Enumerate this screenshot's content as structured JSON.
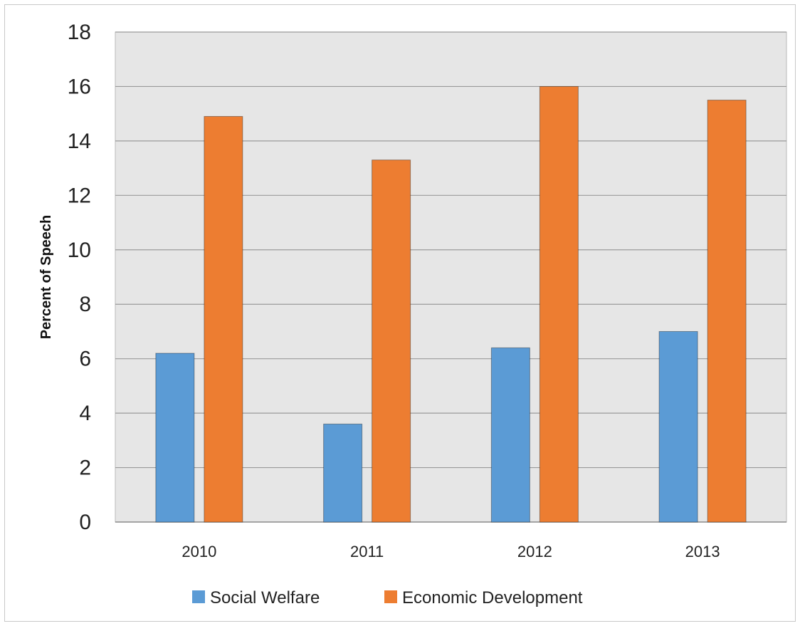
{
  "chart_data": {
    "type": "bar",
    "title": "",
    "xlabel": "",
    "ylabel": "Percent of Speech",
    "ylim": [
      0,
      18
    ],
    "yticks": [
      0,
      2,
      4,
      6,
      8,
      10,
      12,
      14,
      16,
      18
    ],
    "categories": [
      "2010",
      "2011",
      "2012",
      "2013"
    ],
    "series": [
      {
        "name": "Social Welfare",
        "color": "#5b9bd5",
        "values": [
          6.2,
          3.6,
          6.4,
          7.0
        ]
      },
      {
        "name": "Economic Development",
        "color": "#ed7d31",
        "values": [
          14.9,
          13.3,
          16.0,
          15.5
        ]
      }
    ],
    "grid": true,
    "plot_background": "#e6e6e6",
    "legend": "bottom"
  }
}
